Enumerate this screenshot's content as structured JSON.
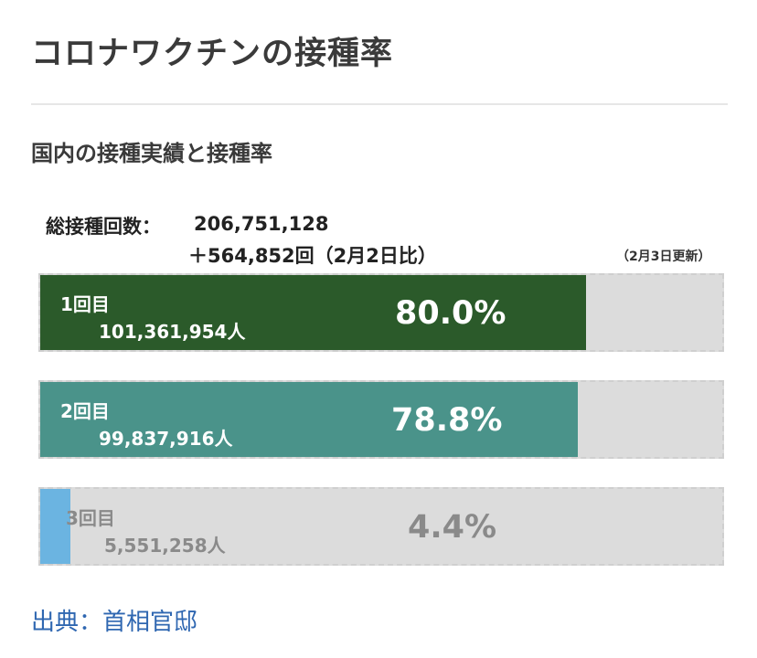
{
  "page": {
    "title": "コロナワクチンの接種率",
    "section_title": "国内の接種実績と接種率",
    "source": "出典：首相官邸"
  },
  "summary": {
    "total_label": "総接種回数：",
    "total_value": "206,751,128",
    "total_diff": "＋564,852回（2月2日比）",
    "update_note": "（2月3日更新）"
  },
  "colors": {
    "dose1": "#2b5a2a",
    "dose2": "#4a938a",
    "dose3": "#6bb4e1",
    "track": "#dcdcdc",
    "label_on_fill": "#ffffff",
    "label_on_track": "#8a8a8a",
    "source_link": "#2f67b1"
  },
  "chart_data": {
    "type": "bar",
    "orientation": "horizontal",
    "unit": "%",
    "xlim": [
      0,
      100
    ],
    "bars": [
      {
        "label": "1回目",
        "count": "101,361,954人",
        "rate_text": "80.0%",
        "value": 80.0
      },
      {
        "label": "2回目",
        "count": "99,837,916人",
        "rate_text": "78.8%",
        "value": 78.8
      },
      {
        "label": "3回目",
        "count": "5,551,258人",
        "rate_text": "4.4%",
        "value": 4.4
      }
    ]
  }
}
